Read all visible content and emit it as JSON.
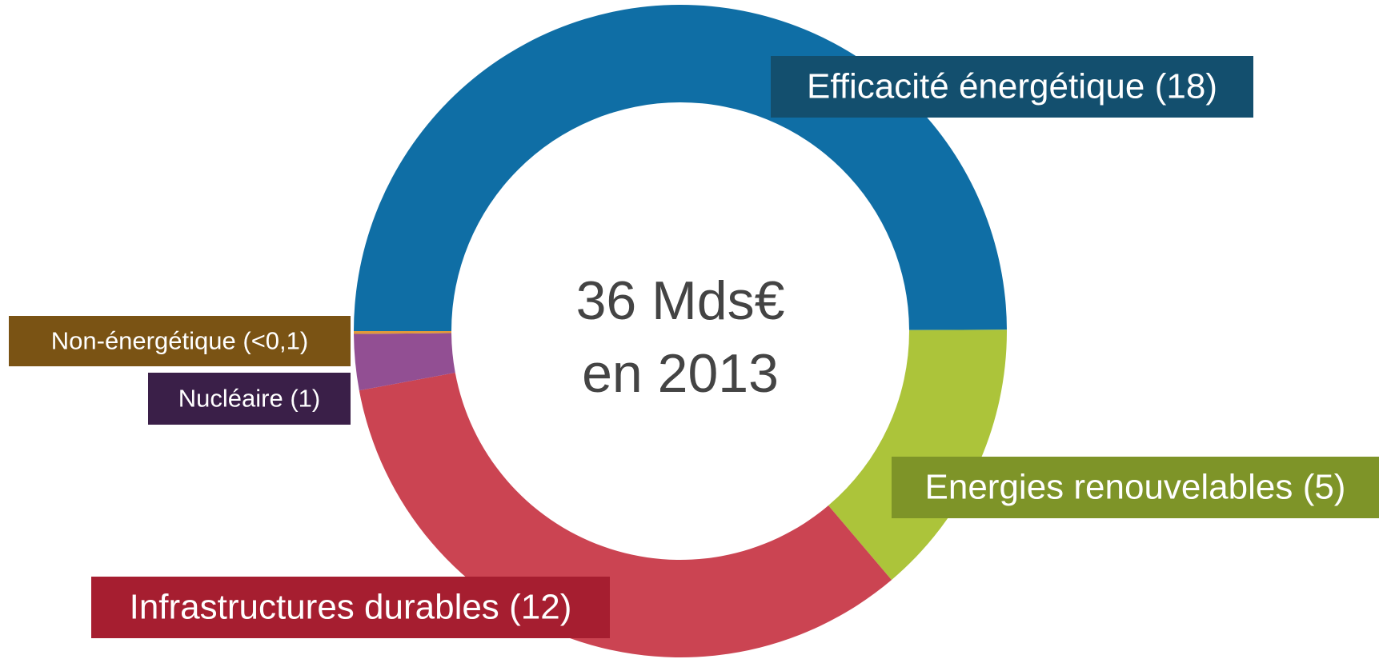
{
  "chart_data": {
    "type": "donut",
    "categories": [
      "Efficacité énergétique",
      "Energies renouvelables",
      "Infrastructures durables",
      "Nucléaire",
      "Non-énergétique"
    ],
    "values": [
      18,
      5,
      12,
      1,
      0.05
    ],
    "value_labels": [
      "(18)",
      "(5)",
      "(12)",
      "(1)",
      "(<0,1)"
    ],
    "colors": [
      "#0f6ea5",
      "#acc43a",
      "#cb4452",
      "#924f93",
      "#e0993b"
    ],
    "label_colors": [
      "#134f6e",
      "#7e9428",
      "#a61e30",
      "#3a1f48",
      "#7a5314"
    ],
    "center_text": [
      "36 Mds€",
      "en 2013"
    ]
  }
}
